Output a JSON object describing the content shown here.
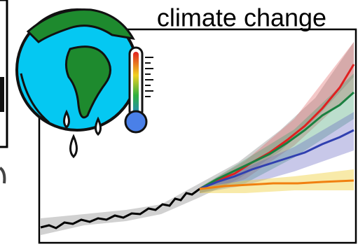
{
  "title": "climate change"
}
